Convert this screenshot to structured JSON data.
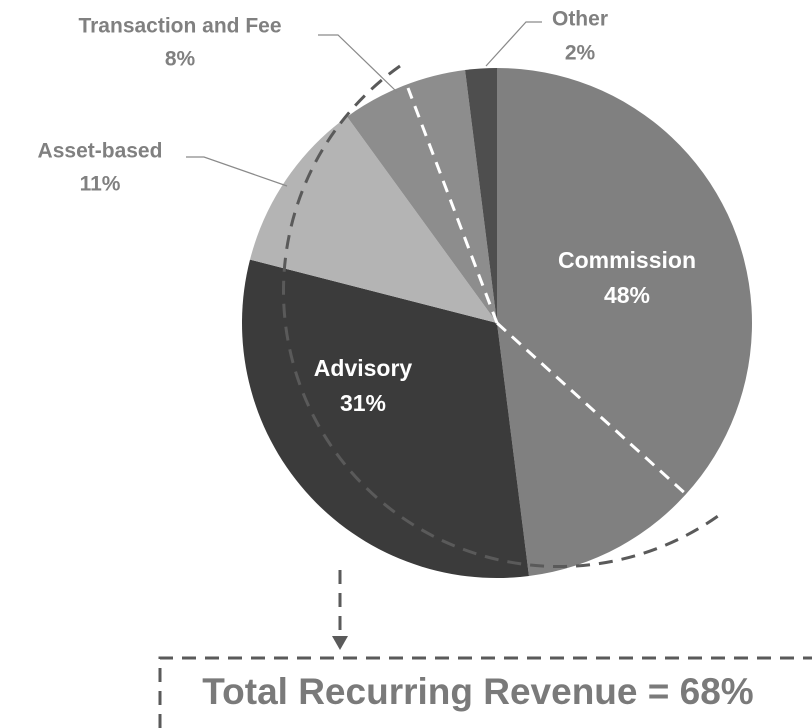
{
  "chart_data": {
    "type": "pie",
    "categories": [
      "Commission",
      "Advisory",
      "Asset-based",
      "Transaction and Fee",
      "Other"
    ],
    "values": [
      48,
      31,
      11,
      8,
      2
    ],
    "value_labels": [
      "48%",
      "31%",
      "11%",
      "8%",
      "2%"
    ],
    "colors": [
      "#808080",
      "#3b3b3b",
      "#b4b4b4",
      "#8d8d8d",
      "#4e4e4e"
    ],
    "annotation": "Total Recurring Revenue = 68%"
  }
}
